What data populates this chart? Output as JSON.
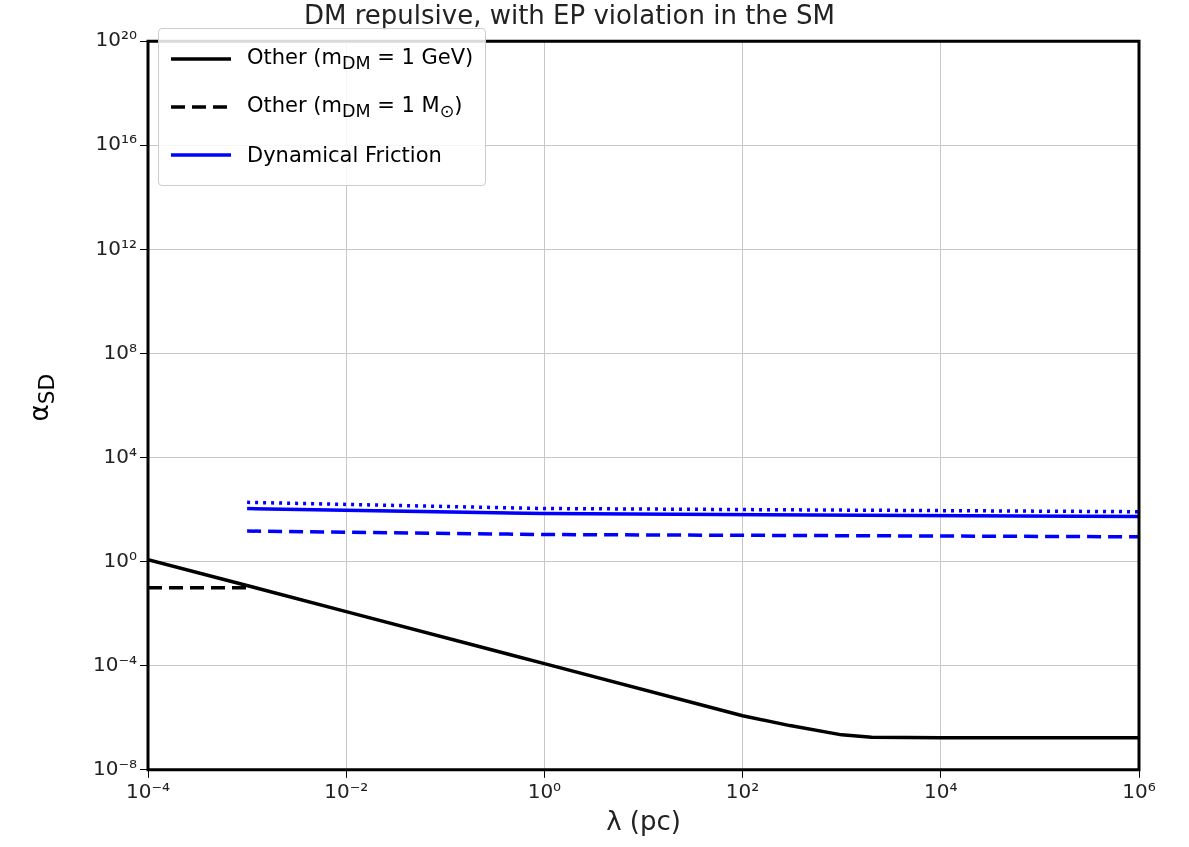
{
  "chart_data": {
    "type": "line",
    "title": "DM repulsive, with EP violation in the SM",
    "xlabel": "λ (pc)",
    "ylabel": "α$_{SD}$",
    "log": "xy",
    "grid": true,
    "legend": "top left",
    "xlim": [
      0.0001,
      1000000
    ],
    "ylim": [
      1e-08,
      1e+20
    ],
    "xticks": [
      {
        "value": 0.0001,
        "label": "10⁻⁴"
      },
      {
        "value": 0.01,
        "label": "10⁻²"
      },
      {
        "value": 1,
        "label": "10⁰"
      },
      {
        "value": 100,
        "label": "10²"
      },
      {
        "value": 10000,
        "label": "10⁴"
      },
      {
        "value": 1000000,
        "label": "10⁶"
      }
    ],
    "yticks": [
      {
        "value": 1e-08,
        "label": "10⁻⁸"
      },
      {
        "value": 0.0001,
        "label": "10⁻⁴"
      },
      {
        "value": 1,
        "label": "10⁰"
      },
      {
        "value": 10000,
        "label": "10⁴"
      },
      {
        "value": 100000000.0,
        "label": "10⁸"
      },
      {
        "value": 1000000000000.0,
        "label": "10¹²"
      },
      {
        "value": 1e+16,
        "label": "10¹⁶"
      },
      {
        "value": 1e+20,
        "label": "10²⁰"
      }
    ],
    "series": [
      {
        "name": "Other (m$_{DM}$ = 1 GeV)",
        "color": "#000000",
        "line_style": "solid",
        "x": [
          0.0001,
          0.01,
          1,
          100,
          300,
          1000,
          2000,
          10000,
          1000000
        ],
        "values": [
          1.2,
          0.012,
          0.00012,
          1.2e-06,
          5e-07,
          2.2e-07,
          1.8e-07,
          1.7e-07,
          1.7e-07
        ]
      },
      {
        "name": "Other (m$_{DM}$ = 1 M$_{⊙}$)",
        "color": "#000000",
        "line_style": "dashed",
        "x": [
          0.0001,
          0.001
        ],
        "values": [
          0.1,
          0.1
        ]
      },
      {
        "name": "Dynamical Friction",
        "color": "#0000ff",
        "line_style": "solid",
        "x": [
          0.001,
          1,
          1000000
        ],
        "values": [
          110,
          70,
          54
        ]
      },
      {
        "color": "#0000ff",
        "line_style": "dotted",
        "x": [
          0.001,
          1,
          1000000
        ],
        "values": [
          190,
          110,
          83
        ]
      },
      {
        "color": "#0000ff",
        "line_style": "dashed",
        "x": [
          0.001,
          1,
          1000000
        ],
        "values": [
          15,
          11,
          9
        ]
      }
    ]
  }
}
